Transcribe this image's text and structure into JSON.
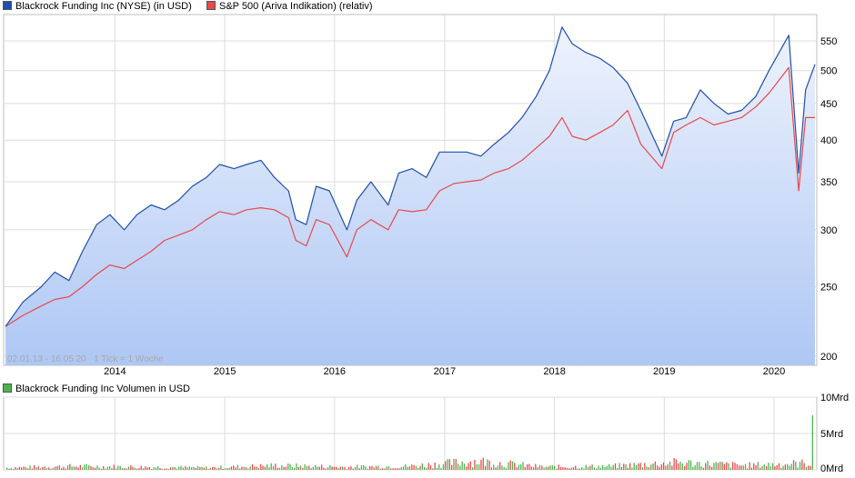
{
  "legend_price": [
    {
      "label": "Blackrock Funding Inc (NYSE) (in USD)",
      "color": "#1f4fa8"
    },
    {
      "label": "S&P 500 (Ariva Indikation) (relativ)",
      "color": "#e8484b"
    }
  ],
  "legend_volume": {
    "label": "Blackrock Funding Inc Volumen in USD",
    "color": "#4bb34b"
  },
  "info_text": "02.01.13 - 16.05.20   1 Tick = 1 Woche",
  "chart_data": [
    {
      "type": "line",
      "yscale": "log",
      "ylim": [
        190,
        600
      ],
      "xlim": [
        "2013-01-02",
        "2020-05-16"
      ],
      "x_tick_labels": [
        "2014",
        "2015",
        "2016",
        "2017",
        "2018",
        "2019",
        "2020"
      ],
      "x_tick_dates": [
        "2014-01-01",
        "2015-01-01",
        "2016-01-01",
        "2017-01-01",
        "2018-01-01",
        "2019-01-01",
        "2020-01-01"
      ],
      "y_tick_labels": [
        "200",
        "250",
        "300",
        "350",
        "400",
        "450",
        "500",
        "550"
      ],
      "y_ticks": [
        200,
        250,
        300,
        350,
        400,
        450,
        500,
        550
      ],
      "grid": true,
      "x": [
        "2013-01-02",
        "2013-03-01",
        "2013-05-01",
        "2013-06-15",
        "2013-08-01",
        "2013-09-15",
        "2013-11-01",
        "2013-12-15",
        "2014-02-01",
        "2014-03-15",
        "2014-05-01",
        "2014-06-15",
        "2014-08-01",
        "2014-09-15",
        "2014-11-01",
        "2014-12-15",
        "2015-02-01",
        "2015-03-15",
        "2015-05-01",
        "2015-06-15",
        "2015-08-01",
        "2015-08-25",
        "2015-09-29",
        "2015-11-01",
        "2015-12-15",
        "2016-02-11",
        "2016-03-15",
        "2016-05-01",
        "2016-06-27",
        "2016-08-01",
        "2016-09-15",
        "2016-11-01",
        "2016-12-15",
        "2017-02-01",
        "2017-03-15",
        "2017-05-01",
        "2017-06-15",
        "2017-08-01",
        "2017-09-15",
        "2017-11-01",
        "2017-12-15",
        "2018-01-26",
        "2018-03-01",
        "2018-04-15",
        "2018-06-01",
        "2018-07-15",
        "2018-09-01",
        "2018-10-15",
        "2018-12-24",
        "2019-02-01",
        "2019-03-15",
        "2019-05-01",
        "2019-06-15",
        "2019-08-01",
        "2019-09-15",
        "2019-11-01",
        "2019-12-15",
        "2020-02-19",
        "2020-03-23",
        "2020-04-15",
        "2020-05-16"
      ],
      "series": [
        {
          "name": "Blackrock Funding Inc (NYSE) (in USD)",
          "color": "#1f4fa8",
          "fill": true,
          "values": [
            220,
            238,
            250,
            262,
            255,
            280,
            305,
            315,
            300,
            315,
            325,
            320,
            330,
            345,
            355,
            370,
            365,
            370,
            375,
            355,
            340,
            310,
            305,
            345,
            340,
            300,
            330,
            350,
            325,
            360,
            365,
            355,
            385,
            385,
            385,
            380,
            395,
            410,
            430,
            460,
            500,
            575,
            545,
            530,
            520,
            505,
            480,
            440,
            380,
            425,
            430,
            470,
            450,
            435,
            440,
            460,
            500,
            560,
            360,
            470,
            510
          ]
        },
        {
          "name": "S&P 500 (Ariva Indikation) (relativ)",
          "color": "#e8484b",
          "fill": false,
          "values": [
            220,
            228,
            235,
            240,
            242,
            250,
            260,
            268,
            265,
            272,
            280,
            290,
            295,
            300,
            310,
            318,
            315,
            320,
            322,
            320,
            312,
            290,
            285,
            310,
            305,
            275,
            300,
            310,
            300,
            320,
            318,
            320,
            340,
            348,
            350,
            352,
            360,
            365,
            375,
            390,
            405,
            430,
            405,
            400,
            410,
            420,
            440,
            395,
            365,
            410,
            420,
            430,
            420,
            425,
            430,
            445,
            465,
            505,
            340,
            430,
            430
          ]
        }
      ]
    },
    {
      "type": "bar",
      "title": "Blackrock Funding Inc Volumen in USD",
      "ylim": [
        0,
        10
      ],
      "y_tick_labels": [
        "0Mrd",
        "5Mrd",
        "10Mrd"
      ],
      "y_ticks": [
        0,
        5,
        10
      ],
      "unit": "Mrd",
      "weekly_bars": 385,
      "values_summary": [
        0.3,
        0.5,
        0.4,
        0.3,
        0.6,
        0.4,
        0.5,
        1.2,
        0.4,
        0.5,
        1.0,
        0.6,
        7.5
      ]
    }
  ]
}
